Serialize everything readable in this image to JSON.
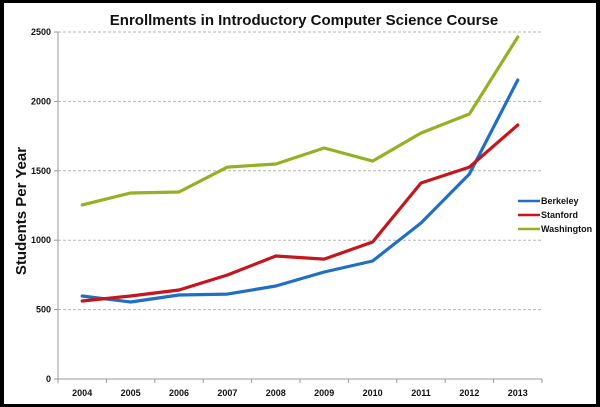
{
  "chart_data": {
    "type": "line",
    "title": "Enrollments in Introductory Computer Science Course",
    "xlabel": "",
    "ylabel": "Students Per Year",
    "x": [
      "2004",
      "2005",
      "2006",
      "2007",
      "2008",
      "2009",
      "2010",
      "2011",
      "2012",
      "2013"
    ],
    "ylim": [
      0,
      2500
    ],
    "yticks": [
      "0",
      "500",
      "1000",
      "1500",
      "2000",
      "2500"
    ],
    "ytick_values": [
      0,
      500,
      1000,
      1500,
      2000,
      2500
    ],
    "grid": true,
    "legend": "right",
    "series": [
      {
        "name": "Berkeley",
        "color": "#1f6fc4",
        "values": [
          598,
          555,
          605,
          612,
          670,
          771,
          850,
          1124,
          1477,
          2154
        ]
      },
      {
        "name": "Stanford",
        "color": "#c4161c",
        "values": [
          562,
          598,
          641,
          749,
          886,
          864,
          987,
          1412,
          1527,
          1830
        ]
      },
      {
        "name": "Washington",
        "color": "#93b123",
        "values": [
          1254,
          1340,
          1347,
          1527,
          1549,
          1664,
          1570,
          1772,
          1909,
          2464
        ]
      }
    ]
  }
}
